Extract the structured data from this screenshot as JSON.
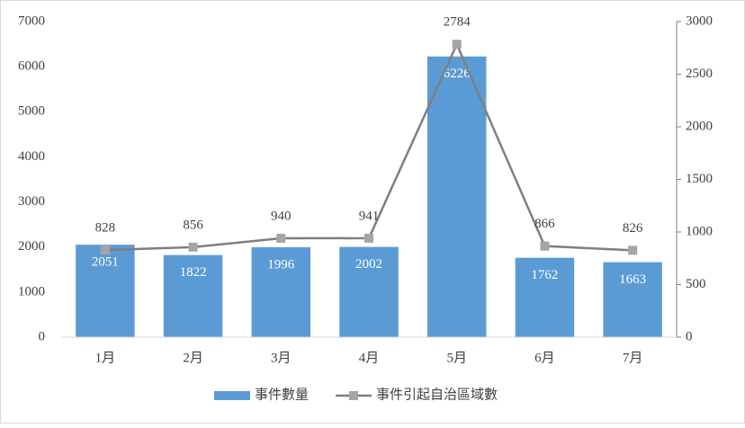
{
  "chart_data": {
    "type": "bar",
    "categories": [
      "1月",
      "2月",
      "3月",
      "4月",
      "5月",
      "6月",
      "7月"
    ],
    "series": [
      {
        "name": "事件數量",
        "type": "bar",
        "color": "#5b9bd5",
        "values": [
          2051,
          1822,
          1996,
          2002,
          6226,
          1762,
          1663
        ]
      },
      {
        "name": "事件引起自治區域數",
        "type": "line",
        "axis": "y2",
        "color": "#7f7f7f",
        "marker_color": "#a5a5a5",
        "values": [
          828,
          856,
          940,
          941,
          2784,
          866,
          826
        ]
      }
    ],
    "ylim": [
      0,
      7000
    ],
    "yticks": [
      0,
      1000,
      2000,
      3000,
      4000,
      5000,
      6000,
      7000
    ],
    "y2lim": [
      0,
      3000
    ],
    "y2ticks": [
      0,
      500,
      1000,
      1500,
      2000,
      2500,
      3000
    ],
    "grid": false,
    "legend": "bottom"
  }
}
